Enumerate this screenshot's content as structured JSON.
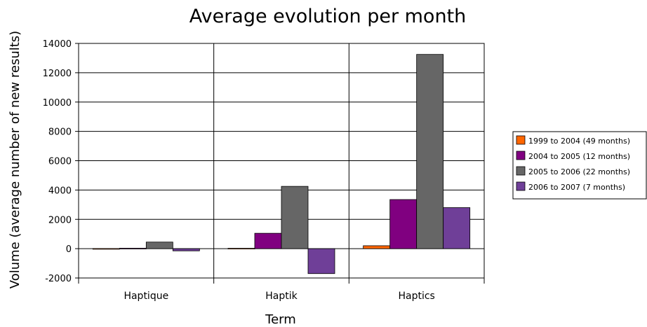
{
  "chart_data": {
    "type": "bar",
    "title": "Average evolution per month",
    "xlabel": "Term",
    "ylabel": "Volume (average number of new results)",
    "categories": [
      "Haptique",
      "Haptik",
      "Haptics"
    ],
    "series": [
      {
        "name": "1999 to 2004 (49 months)",
        "color": "#ff6600",
        "values": [
          10,
          25,
          200
        ]
      },
      {
        "name": "2004 to 2005 (12 months)",
        "color": "#800080",
        "values": [
          30,
          1050,
          3350
        ]
      },
      {
        "name": "2005 to 2006 (22 months)",
        "color": "#666666",
        "values": [
          450,
          4250,
          13250
        ]
      },
      {
        "name": "2006 to 2007 (7 months)",
        "color": "#6f3f98",
        "values": [
          -150,
          -1700,
          2800
        ]
      }
    ],
    "ylim": [
      -2000,
      14000
    ],
    "yticks": [
      -2000,
      0,
      2000,
      4000,
      6000,
      8000,
      10000,
      12000,
      14000
    ],
    "grid": true,
    "legend": "right"
  }
}
